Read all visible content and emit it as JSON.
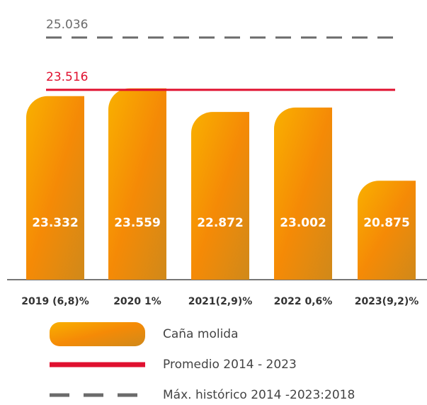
{
  "chart_data": {
    "type": "bar",
    "categories": [
      "2019 (6,8)%",
      "2020 1%",
      "2021(2,9)%",
      "2022 0,6%",
      "2023(9,2)%"
    ],
    "series": [
      {
        "name": "Caña molida",
        "color": "#f7ac00",
        "values": [
          23332,
          23559,
          22872,
          23002,
          20875
        ],
        "value_labels": [
          "23.332",
          "23.559",
          "22.872",
          "23.002",
          "20.875"
        ]
      }
    ],
    "reference_lines": [
      {
        "name": "Máx. histórico 2014 -2023:2018",
        "value": 25036,
        "label": "25.036",
        "color": "#6b6b6b",
        "style": "dashed"
      },
      {
        "name": "Promedio 2014 - 2023",
        "value": 23516,
        "label": "23.516",
        "color": "#e0102f",
        "style": "solid"
      }
    ],
    "ylim": [
      18000,
      25200
    ]
  }
}
